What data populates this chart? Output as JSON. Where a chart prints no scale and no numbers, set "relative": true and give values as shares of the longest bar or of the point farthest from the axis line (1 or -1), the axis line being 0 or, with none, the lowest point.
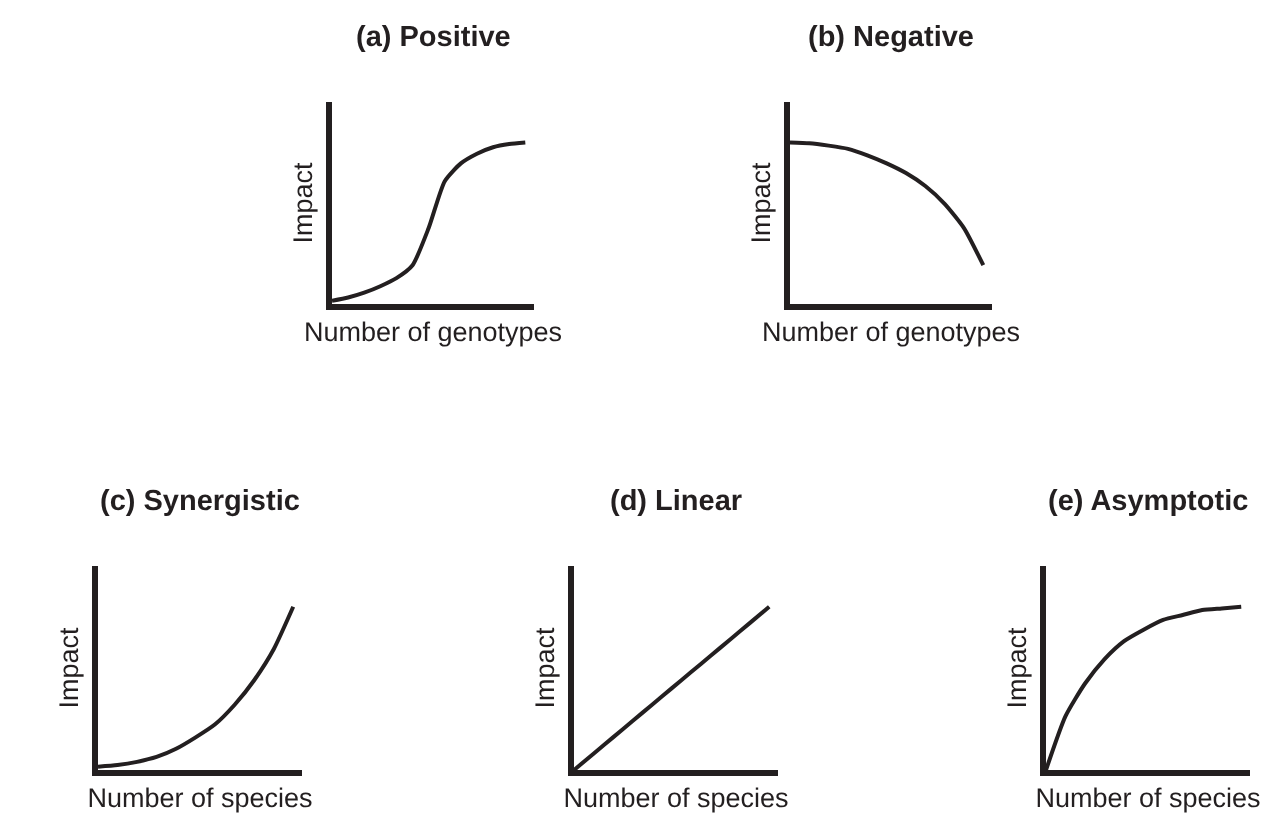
{
  "chart_data": [
    {
      "type": "line",
      "title": "(a) Positive",
      "xlabel": "Number of genotypes",
      "ylabel": "Impact",
      "relative": true,
      "tick_labels": false,
      "categories": [
        null,
        null,
        null,
        null,
        null,
        null,
        null,
        null,
        null,
        null,
        null,
        null,
        null
      ],
      "series": [
        {
          "color": "#231f20",
          "values": [
            0.02,
            0.04,
            0.07,
            0.11,
            0.16,
            0.24,
            0.47,
            0.76,
            0.87,
            0.93,
            0.97,
            0.99,
            1
          ]
        }
      ]
    },
    {
      "type": "line",
      "title": "(b) Negative",
      "xlabel": "Number of genotypes",
      "ylabel": "Impact",
      "relative": true,
      "tick_labels": false,
      "categories": [
        null,
        null,
        null,
        null,
        null,
        null,
        null,
        null,
        null,
        null,
        null
      ],
      "series": [
        {
          "color": "#231f20",
          "values": [
            1,
            0.995,
            0.98,
            0.96,
            0.92,
            0.87,
            0.81,
            0.73,
            0.62,
            0.47,
            0.24
          ]
        }
      ]
    },
    {
      "type": "line",
      "title": "(c) Synergistic",
      "xlabel": "Number of species",
      "ylabel": "Impact",
      "relative": true,
      "tick_labels": false,
      "categories": [
        null,
        null,
        null,
        null,
        null,
        null,
        null,
        null,
        null,
        null,
        null
      ],
      "series": [
        {
          "color": "#231f20",
          "values": [
            0.02,
            0.03,
            0.05,
            0.08,
            0.13,
            0.2,
            0.28,
            0.4,
            0.55,
            0.74,
            1
          ]
        }
      ]
    },
    {
      "type": "line",
      "title": "(d) Linear",
      "xlabel": "Number of species",
      "ylabel": "Impact",
      "relative": true,
      "tick_labels": false,
      "categories": [
        null,
        null,
        null,
        null,
        null,
        null,
        null,
        null,
        null,
        null,
        null
      ],
      "series": [
        {
          "color": "#231f20",
          "values": [
            0,
            0.1,
            0.2,
            0.3,
            0.4,
            0.5,
            0.6,
            0.7,
            0.8,
            0.9,
            1
          ]
        }
      ]
    },
    {
      "type": "line",
      "title": "(e) Asymptotic",
      "xlabel": "Number of species",
      "ylabel": "Impact",
      "relative": true,
      "tick_labels": false,
      "categories": [
        null,
        null,
        null,
        null,
        null,
        null,
        null,
        null,
        null,
        null,
        null
      ],
      "series": [
        {
          "color": "#231f20",
          "values": [
            0,
            0.33,
            0.53,
            0.68,
            0.79,
            0.86,
            0.92,
            0.95,
            0.98,
            0.99,
            1
          ]
        }
      ]
    }
  ]
}
